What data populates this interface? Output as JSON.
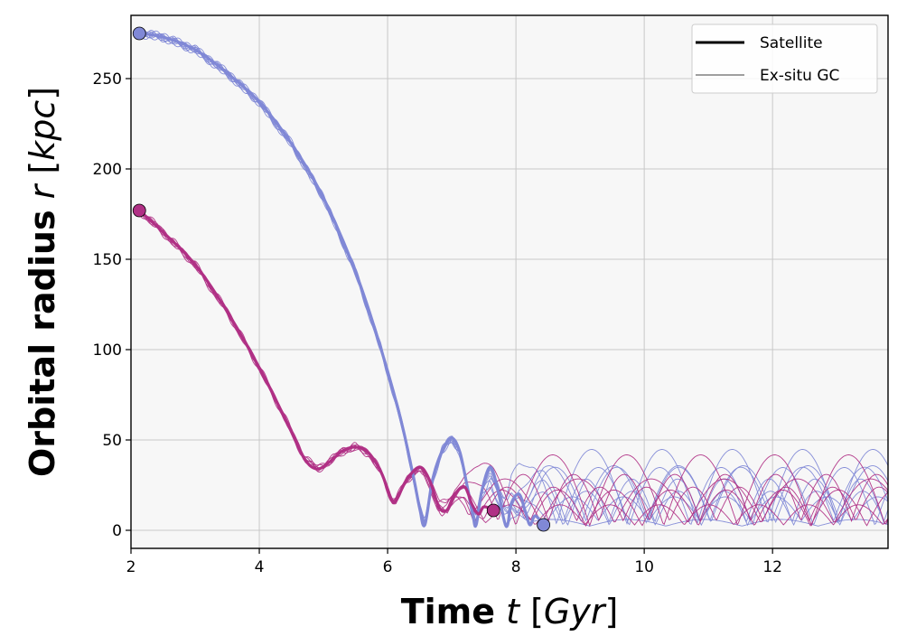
{
  "chart_data": {
    "type": "line",
    "xlabel": {
      "bold": "Time",
      "math": "t",
      "unit": "Gyr"
    },
    "ylabel": {
      "bold": "Orbital radius",
      "math": "r",
      "unit": "kpc"
    },
    "xlim": [
      2.0,
      13.8
    ],
    "ylim": [
      -10,
      285
    ],
    "xticks": [
      2,
      4,
      6,
      8,
      10,
      12
    ],
    "yticks": [
      0,
      50,
      100,
      150,
      200,
      250
    ],
    "grid": true,
    "legend_position": "top-right",
    "legend": [
      {
        "label": "Satellite",
        "style": "thick"
      },
      {
        "label": "Ex-situ GC",
        "style": "thin"
      }
    ],
    "colors": {
      "satellite_1": "#8088d6",
      "satellite_2": "#b03085",
      "plot_background": "#f7f7f7",
      "grid": "#c8c8c8"
    },
    "series": [
      {
        "role": "satellite",
        "color": "satellite_1",
        "start": [
          2.13,
          275
        ],
        "end": [
          8.43,
          3
        ],
        "points": [
          [
            2.13,
            275
          ],
          [
            2.5,
            273
          ],
          [
            3.0,
            266
          ],
          [
            3.5,
            253
          ],
          [
            4.0,
            237
          ],
          [
            4.5,
            214
          ],
          [
            5.0,
            184
          ],
          [
            5.5,
            143
          ],
          [
            5.9,
            100
          ],
          [
            6.2,
            62
          ],
          [
            6.4,
            30
          ],
          [
            6.5,
            12
          ],
          [
            6.58,
            3
          ],
          [
            6.7,
            28
          ],
          [
            6.85,
            44
          ],
          [
            7.0,
            51
          ],
          [
            7.12,
            44
          ],
          [
            7.22,
            28
          ],
          [
            7.33,
            8
          ],
          [
            7.38,
            3
          ],
          [
            7.47,
            22
          ],
          [
            7.6,
            35
          ],
          [
            7.72,
            22
          ],
          [
            7.82,
            5
          ],
          [
            7.87,
            3
          ],
          [
            7.93,
            15
          ],
          [
            8.05,
            20
          ],
          [
            8.15,
            10
          ],
          [
            8.22,
            3
          ],
          [
            8.3,
            8
          ],
          [
            8.43,
            3
          ]
        ]
      },
      {
        "role": "satellite",
        "color": "satellite_2",
        "start": [
          2.13,
          177
        ],
        "end": [
          7.65,
          11
        ],
        "points": [
          [
            2.13,
            177
          ],
          [
            2.5,
            165
          ],
          [
            3.0,
            147
          ],
          [
            3.5,
            121
          ],
          [
            4.0,
            90
          ],
          [
            4.4,
            62
          ],
          [
            4.7,
            40
          ],
          [
            4.9,
            34
          ],
          [
            5.1,
            38
          ],
          [
            5.3,
            44
          ],
          [
            5.5,
            46
          ],
          [
            5.7,
            43
          ],
          [
            5.9,
            32
          ],
          [
            6.05,
            18
          ],
          [
            6.12,
            16
          ],
          [
            6.3,
            28
          ],
          [
            6.5,
            35
          ],
          [
            6.65,
            28
          ],
          [
            6.8,
            13
          ],
          [
            6.92,
            11
          ],
          [
            7.05,
            20
          ],
          [
            7.2,
            24
          ],
          [
            7.32,
            14
          ],
          [
            7.42,
            9
          ],
          [
            7.5,
            13
          ],
          [
            7.65,
            11
          ]
        ]
      }
    ],
    "ex_situ_gc": [
      {
        "color": "satellite_1",
        "count": 8,
        "after": 8.43,
        "max_radius": 48
      },
      {
        "color": "satellite_2",
        "count": 6,
        "after": 7.65,
        "max_radius": 55
      }
    ]
  }
}
